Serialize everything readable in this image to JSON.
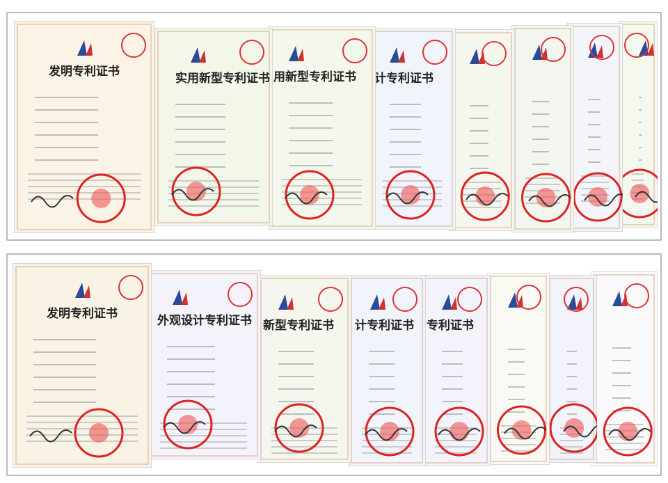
{
  "panels": [
    {
      "certificates": [
        {
          "title": "发明专利证书"
        },
        {
          "title": "实用新型专利证书"
        },
        {
          "title": "用新型专利证书"
        },
        {
          "title": "计专利证书"
        }
      ]
    },
    {
      "certificates": [
        {
          "title": "发明专利证书"
        },
        {
          "title": "外观设计专利证书"
        },
        {
          "title": "新型专利证书"
        },
        {
          "title": "计专利证书"
        },
        {
          "title": "专利证书"
        }
      ]
    }
  ]
}
